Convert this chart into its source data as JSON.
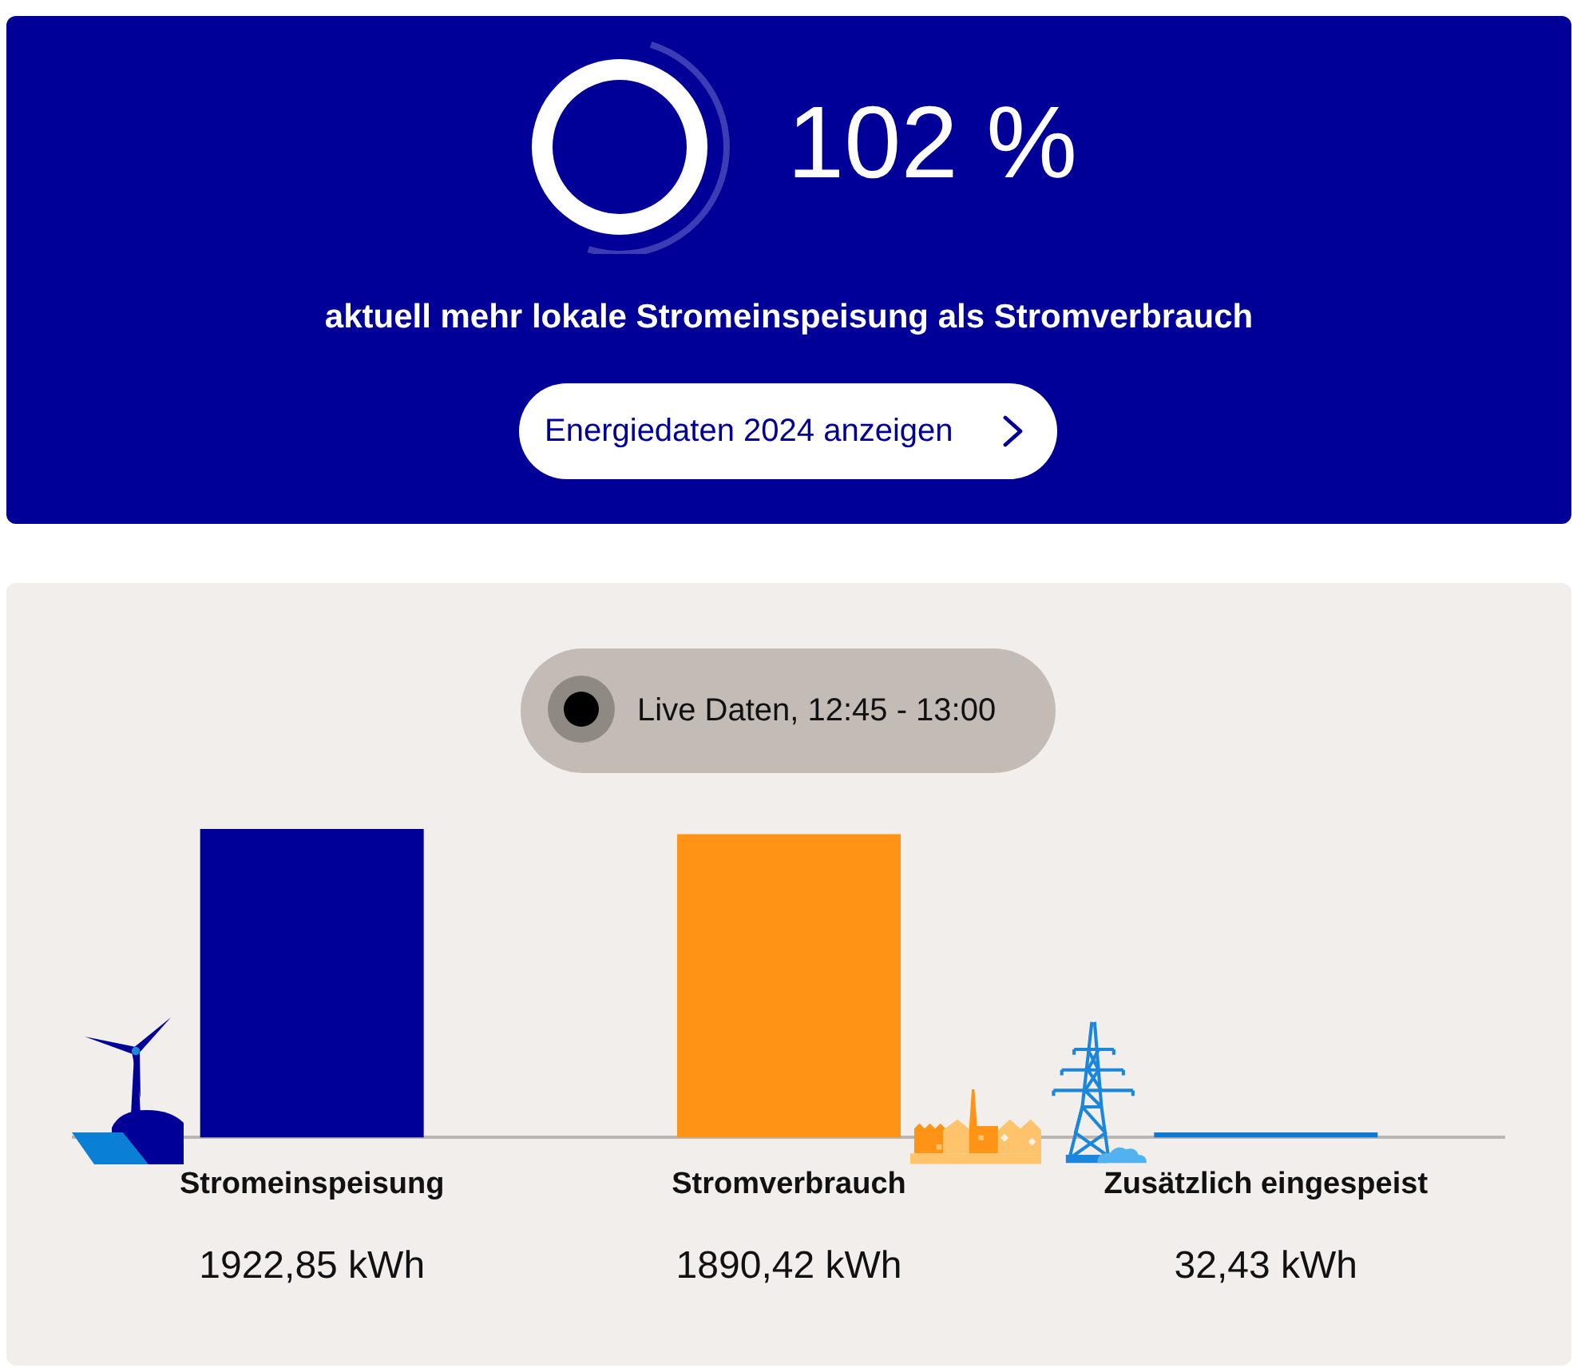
{
  "chart_data": [
    {
      "type": "other",
      "title": "102 %",
      "subtitle": "aktuell mehr lokale Stromeinspeisung als Stromverbrauch",
      "annotations": [
        "Energiedaten 2024 anzeigen"
      ]
    },
    {
      "type": "bar",
      "title": "Live Daten, 12:45 - 13:00",
      "categories": [
        "Stromeinspeisung",
        "Stromverbrauch",
        "Zusätzlich eingespeist"
      ],
      "values": [
        1922.85,
        1890.42,
        32.43
      ],
      "colors": [
        "#000099",
        "#ff9316",
        "#0a7ad6"
      ],
      "value_labels": [
        "1922,85 kWh",
        "1890,42 kWh",
        "32,43 kWh"
      ],
      "tick_labels": "x"
    }
  ]
}
